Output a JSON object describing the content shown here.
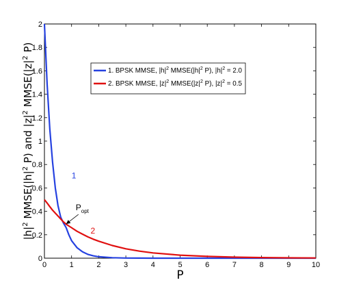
{
  "chart_data": {
    "type": "line",
    "title": "",
    "xlabel": "P",
    "ylabel": {
      "part1": "|h|",
      "sup1": "2",
      "part2": " MMSE(|h|",
      "sup2": "2",
      "part3": " P) and |z|",
      "sup3": "2",
      "part4": " MMSE(|z|",
      "sup4": "2",
      "part5": " P)"
    },
    "xlim": [
      0,
      10
    ],
    "ylim": [
      0,
      2
    ],
    "xticks": [
      0,
      1,
      2,
      3,
      4,
      5,
      6,
      7,
      8,
      9,
      10
    ],
    "yticks": [
      0,
      0.2,
      0.4,
      0.6,
      0.8,
      1,
      1.2,
      1.4,
      1.6,
      1.8,
      2
    ],
    "ytick_labels": [
      "0",
      "0.2",
      "0.4",
      "0.6",
      "0.8",
      "1",
      "1.2",
      "1.4",
      "1.6",
      "1.8",
      "2"
    ],
    "grid": false,
    "legend_position": "upper-right",
    "x": [
      0,
      0.1,
      0.2,
      0.3,
      0.4,
      0.5,
      0.6,
      0.7,
      0.75,
      0.8,
      0.9,
      1.0,
      1.2,
      1.4,
      1.6,
      1.8,
      2.0,
      2.5,
      3.0,
      3.5,
      4.0,
      5.0,
      6.0,
      7.0,
      8.0,
      9.0,
      10.0
    ],
    "series": [
      {
        "name": "BPSK MMSE, |h|² MMSE(|h|² P), |h|² = 2.0",
        "legend": {
          "num": "1.",
          "p1": " BPSK MMSE, |h|",
          "s1": "2",
          "p2": " MMSE(|h|",
          "s2": "2",
          "p3": " P), |h|",
          "s3": "2",
          "p4": " = 2.0"
        },
        "color": "#2541e0",
        "curve_label": "1",
        "values": [
          2.0,
          1.48,
          1.1,
          0.82,
          0.6,
          0.45,
          0.35,
          0.3,
          0.28,
          0.26,
          0.2,
          0.15,
          0.09,
          0.055,
          0.033,
          0.02,
          0.012,
          0.004,
          0.001,
          0.0004,
          0.0001,
          0,
          0,
          0,
          0,
          0,
          0
        ]
      },
      {
        "name": "BPSK MMSE, |z|² MMSE(|z|² P), |z|² = 0.5",
        "legend": {
          "num": "2.",
          "p1": " BPSK MMSE, |z|",
          "s1": "2",
          "p2": " MMSE(|z|",
          "s2": "2",
          "p3": " P), |z|",
          "s3": "2",
          "p4": " = 0.5"
        },
        "color": "#e01010",
        "curve_label": "2",
        "values": [
          0.5,
          0.47,
          0.44,
          0.41,
          0.385,
          0.36,
          0.335,
          0.31,
          0.3,
          0.29,
          0.275,
          0.26,
          0.23,
          0.205,
          0.182,
          0.162,
          0.145,
          0.108,
          0.08,
          0.06,
          0.045,
          0.026,
          0.015,
          0.009,
          0.005,
          0.003,
          0.002
        ]
      }
    ],
    "annotation": {
      "text": "P",
      "subscript": "opt",
      "x": 0.75,
      "y": 0.28
    }
  }
}
